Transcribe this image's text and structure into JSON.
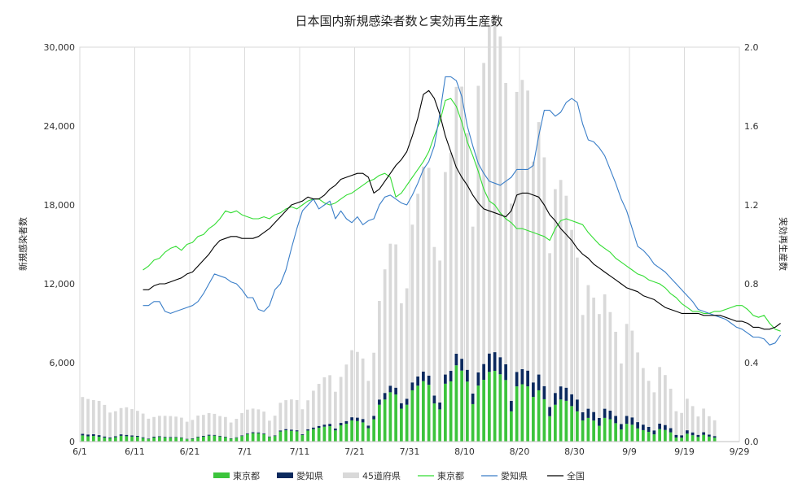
{
  "chart_data": {
    "type": "bar+line",
    "title": "日本国内新規感染者数と実効再生産数",
    "ylabel_left": "新規感染者数",
    "ylabel_right": "実効再生産数",
    "ylim_left": [
      0,
      30000
    ],
    "ylim_right": [
      0,
      2.0
    ],
    "yticks_left": [
      "0",
      "6,000",
      "12,000",
      "18,000",
      "24,000",
      "30,000"
    ],
    "yticks_right": [
      "0.0",
      "0.4",
      "0.8",
      "1.2",
      "1.6",
      "2.0"
    ],
    "xticks": [
      "6/1",
      "6/11",
      "6/21",
      "7/1",
      "7/11",
      "7/21",
      "7/31",
      "8/10",
      "8/20",
      "8/30",
      "9/9",
      "9/19",
      "9/29"
    ],
    "x_start": "6/1",
    "grid": "vertical",
    "legend_position": "bottom",
    "legend": [
      {
        "label": "東京都",
        "kind": "bar",
        "color": "#3cc43c"
      },
      {
        "label": "愛知県",
        "kind": "bar",
        "color": "#0c2a5e"
      },
      {
        "label": "45道府県",
        "kind": "bar",
        "color": "#d9d9d9"
      },
      {
        "label": "東京都",
        "kind": "line",
        "color": "#33dd33"
      },
      {
        "label": "愛知県",
        "kind": "line",
        "color": "#3a7ec8"
      },
      {
        "label": "全国",
        "kind": "line",
        "color": "#000000"
      }
    ],
    "bars": {
      "tokyo": [
        470,
        400,
        430,
        370,
        300,
        250,
        330,
        440,
        410,
        380,
        360,
        270,
        200,
        310,
        350,
        310,
        290,
        310,
        280,
        180,
        210,
        330,
        370,
        450,
        450,
        390,
        330,
        220,
        290,
        420,
        570,
        640,
        630,
        570,
        350,
        420,
        770,
        860,
        820,
        780,
        500,
        840,
        950,
        1050,
        1130,
        1170,
        850,
        1240,
        1360,
        1610,
        1560,
        1460,
        1020,
        1700,
        2800,
        3200,
        3750,
        3580,
        2500,
        2800,
        3900,
        4250,
        4600,
        4320,
        2900,
        2450,
        4400,
        4580,
        5800,
        5400,
        4560,
        2850,
        4260,
        4700,
        5300,
        5380,
        5120,
        4680,
        2300,
        4200,
        4360,
        4200,
        3400,
        3900,
        3220,
        1930,
        2800,
        3200,
        3100,
        2700,
        2300,
        1610,
        1800,
        1600,
        1200,
        1800,
        1700,
        1400,
        920,
        1350,
        1280,
        1000,
        870,
        740,
        550,
        950,
        880,
        700,
        310,
        300,
        600,
        480,
        350,
        510,
        380,
        300
      ],
      "aichi": [
        120,
        140,
        130,
        120,
        90,
        60,
        80,
        110,
        100,
        90,
        80,
        60,
        40,
        60,
        60,
        50,
        50,
        40,
        40,
        30,
        40,
        50,
        60,
        70,
        60,
        50,
        40,
        30,
        40,
        50,
        60,
        70,
        70,
        60,
        40,
        50,
        80,
        90,
        90,
        80,
        60,
        100,
        120,
        140,
        160,
        180,
        140,
        180,
        200,
        240,
        260,
        260,
        200,
        260,
        400,
        500,
        500,
        520,
        420,
        460,
        600,
        700,
        720,
        700,
        600,
        520,
        700,
        800,
        880,
        900,
        900,
        800,
        1000,
        1200,
        1400,
        1420,
        1300,
        1200,
        800,
        1100,
        1150,
        1200,
        1100,
        1200,
        1000,
        700,
        900,
        1000,
        1000,
        900,
        900,
        620,
        700,
        650,
        600,
        700,
        650,
        550,
        420,
        600,
        560,
        480,
        420,
        380,
        300,
        420,
        380,
        320,
        200,
        180,
        260,
        220,
        160,
        200,
        150,
        120
      ],
      "other": [
        2800,
        2700,
        2600,
        2600,
        2400,
        1900,
        1900,
        2000,
        2100,
        2000,
        1900,
        1800,
        1500,
        1500,
        1550,
        1600,
        1600,
        1550,
        1500,
        1300,
        1400,
        1600,
        1600,
        1650,
        1600,
        1500,
        1500,
        1200,
        1400,
        1700,
        1800,
        1800,
        1750,
        1650,
        1200,
        1500,
        2100,
        2200,
        2300,
        2300,
        1900,
        2200,
        2800,
        3200,
        3600,
        3700,
        2800,
        3500,
        4300,
        5100,
        5000,
        4600,
        3400,
        4800,
        7500,
        9400,
        10800,
        10900,
        7600,
        8400,
        12000,
        13900,
        15600,
        15800,
        11300,
        10800,
        15400,
        16600,
        20300,
        20700,
        18000,
        12700,
        21800,
        22900,
        25000,
        25600,
        24400,
        21400,
        15000,
        21300,
        22000,
        21300,
        16800,
        19200,
        17400,
        11700,
        15500,
        15700,
        14600,
        12500,
        10800,
        7400,
        9400,
        8700,
        7900,
        8700,
        7500,
        6400,
        4600,
        7000,
        6600,
        5300,
        4300,
        3500,
        2900,
        4300,
        3800,
        3000,
        1800,
        1700,
        2400,
        2000,
        1400,
        1800,
        1400,
        1200
      ]
    },
    "lines": {
      "tokyo_rt": {
        "start": 11,
        "values": [
          0.87,
          0.89,
          0.92,
          0.93,
          0.96,
          0.98,
          0.99,
          0.97,
          1.0,
          1.01,
          1.04,
          1.05,
          1.08,
          1.1,
          1.13,
          1.17,
          1.16,
          1.17,
          1.15,
          1.14,
          1.13,
          1.13,
          1.14,
          1.13,
          1.15,
          1.16,
          1.18,
          1.19,
          1.18,
          1.2,
          1.22,
          1.23,
          1.23,
          1.21,
          1.2,
          1.21,
          1.23,
          1.25,
          1.26,
          1.28,
          1.3,
          1.32,
          1.33,
          1.35,
          1.36,
          1.34,
          1.24,
          1.26,
          1.3,
          1.34,
          1.38,
          1.42,
          1.47,
          1.55,
          1.62,
          1.73,
          1.74,
          1.7,
          1.62,
          1.52,
          1.45,
          1.37,
          1.28,
          1.22,
          1.2,
          1.16,
          1.13,
          1.11,
          1.08,
          1.08,
          1.07,
          1.06,
          1.05,
          1.04,
          1.02,
          1.08,
          1.12,
          1.13,
          1.12,
          1.11,
          1.1,
          1.06,
          1.03,
          1.0,
          0.98,
          0.96,
          0.93,
          0.91,
          0.89,
          0.87,
          0.85,
          0.84,
          0.82,
          0.81,
          0.8,
          0.78,
          0.75,
          0.73,
          0.7,
          0.68,
          0.66,
          0.66,
          0.65,
          0.65,
          0.66,
          0.66,
          0.67,
          0.68,
          0.69,
          0.69,
          0.67,
          0.64,
          0.63,
          0.64,
          0.6,
          0.57,
          0.56
        ]
      },
      "aichi_rt": {
        "start": 11,
        "values": [
          0.69,
          0.69,
          0.71,
          0.71,
          0.66,
          0.65,
          0.66,
          0.67,
          0.68,
          0.69,
          0.71,
          0.75,
          0.8,
          0.85,
          0.84,
          0.83,
          0.81,
          0.8,
          0.77,
          0.73,
          0.73,
          0.67,
          0.66,
          0.69,
          0.77,
          0.8,
          0.87,
          0.98,
          1.08,
          1.17,
          1.2,
          1.23,
          1.18,
          1.2,
          1.22,
          1.13,
          1.17,
          1.13,
          1.11,
          1.14,
          1.1,
          1.12,
          1.13,
          1.2,
          1.24,
          1.25,
          1.23,
          1.21,
          1.2,
          1.25,
          1.31,
          1.38,
          1.42,
          1.5,
          1.66,
          1.85,
          1.85,
          1.83,
          1.75,
          1.6,
          1.5,
          1.41,
          1.36,
          1.32,
          1.31,
          1.3,
          1.32,
          1.34,
          1.38,
          1.38,
          1.38,
          1.4,
          1.55,
          1.68,
          1.68,
          1.65,
          1.67,
          1.72,
          1.74,
          1.72,
          1.61,
          1.53,
          1.52,
          1.49,
          1.45,
          1.38,
          1.31,
          1.23,
          1.17,
          1.08,
          0.99,
          0.97,
          0.94,
          0.9,
          0.88,
          0.86,
          0.83,
          0.8,
          0.77,
          0.74,
          0.71,
          0.67,
          0.66,
          0.65,
          0.64,
          0.63,
          0.62,
          0.6,
          0.58,
          0.57,
          0.55,
          0.53,
          0.53,
          0.52,
          0.49,
          0.5,
          0.54
        ]
      },
      "national_rt": {
        "start": 11,
        "values": [
          0.77,
          0.77,
          0.79,
          0.8,
          0.8,
          0.81,
          0.82,
          0.83,
          0.85,
          0.86,
          0.89,
          0.92,
          0.95,
          0.99,
          1.02,
          1.03,
          1.04,
          1.04,
          1.03,
          1.03,
          1.03,
          1.04,
          1.06,
          1.08,
          1.11,
          1.14,
          1.17,
          1.2,
          1.21,
          1.22,
          1.24,
          1.23,
          1.23,
          1.25,
          1.28,
          1.3,
          1.33,
          1.34,
          1.35,
          1.36,
          1.36,
          1.34,
          1.26,
          1.28,
          1.32,
          1.36,
          1.4,
          1.43,
          1.47,
          1.55,
          1.64,
          1.76,
          1.78,
          1.74,
          1.66,
          1.55,
          1.47,
          1.39,
          1.34,
          1.3,
          1.25,
          1.21,
          1.18,
          1.17,
          1.16,
          1.15,
          1.14,
          1.17,
          1.25,
          1.26,
          1.26,
          1.25,
          1.24,
          1.2,
          1.15,
          1.12,
          1.08,
          1.05,
          1.02,
          0.98,
          0.95,
          0.93,
          0.9,
          0.88,
          0.86,
          0.84,
          0.82,
          0.8,
          0.78,
          0.77,
          0.76,
          0.74,
          0.73,
          0.72,
          0.7,
          0.68,
          0.67,
          0.66,
          0.65,
          0.65,
          0.65,
          0.65,
          0.64,
          0.64,
          0.64,
          0.64,
          0.63,
          0.62,
          0.61,
          0.61,
          0.6,
          0.58,
          0.58,
          0.57,
          0.57,
          0.58,
          0.6
        ]
      }
    }
  }
}
